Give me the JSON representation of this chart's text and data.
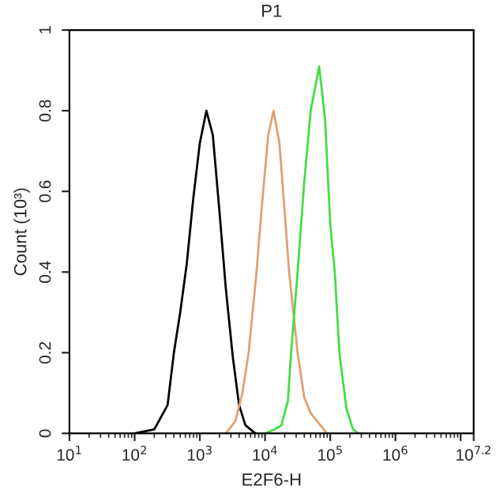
{
  "chart_data": {
    "type": "line",
    "title": "P1",
    "xlabel": "E2F6-H",
    "ylabel": "Count (10³)",
    "log": "x",
    "grid": false,
    "legend": false,
    "marker": "none",
    "line_style": "solid",
    "xlim": [
      10,
      15848932
    ],
    "ylim": [
      0,
      1
    ],
    "xticks": [
      {
        "value": 10,
        "label": "10$^{1}$"
      },
      {
        "value": 100,
        "label": "10$^{2}$"
      },
      {
        "value": 1000,
        "label": "10$^{3}$"
      },
      {
        "value": 10000,
        "label": "10$^{4}$"
      },
      {
        "value": 100000,
        "label": "10$^{5}$"
      },
      {
        "value": 1000000,
        "label": "10$^{6}$"
      },
      {
        "value": 10000000,
        "label": null
      },
      {
        "value": 15848932,
        "label": "10$^{7.2}$"
      }
    ],
    "yticks": [
      0,
      0.2,
      0.4,
      0.6,
      0.8,
      1
    ],
    "series": [
      {
        "color": "#000000",
        "x": [
          100,
          200,
          320,
          400,
          500,
          630,
          790,
          1000,
          1260,
          1580,
          2000,
          2500,
          3200,
          4000,
          5000,
          7100
        ],
        "values": [
          0,
          0.01,
          0.07,
          0.2,
          0.3,
          0.42,
          0.58,
          0.72,
          0.8,
          0.74,
          0.55,
          0.36,
          0.19,
          0.07,
          0.02,
          0
        ]
      },
      {
        "color": "#e0a070",
        "x": [
          2500,
          3500,
          4500,
          5600,
          7400,
          8900,
          11200,
          13500,
          16600,
          20000,
          23400,
          31600,
          39800,
          50100,
          63100,
          79400,
          89100
        ],
        "values": [
          0,
          0.03,
          0.1,
          0.2,
          0.4,
          0.56,
          0.74,
          0.8,
          0.72,
          0.55,
          0.4,
          0.2,
          0.09,
          0.05,
          0.03,
          0.01,
          0
        ]
      },
      {
        "color": "#44dd44",
        "x": [
          10000,
          14100,
          17800,
          22400,
          25100,
          31600,
          39800,
          50100,
          67600,
          83200,
          100000,
          117500,
          138000,
          177800,
          223900,
          269200
        ],
        "values": [
          0,
          0.01,
          0.02,
          0.08,
          0.2,
          0.4,
          0.62,
          0.8,
          0.91,
          0.78,
          0.52,
          0.4,
          0.2,
          0.06,
          0.01,
          0
        ]
      }
    ]
  }
}
